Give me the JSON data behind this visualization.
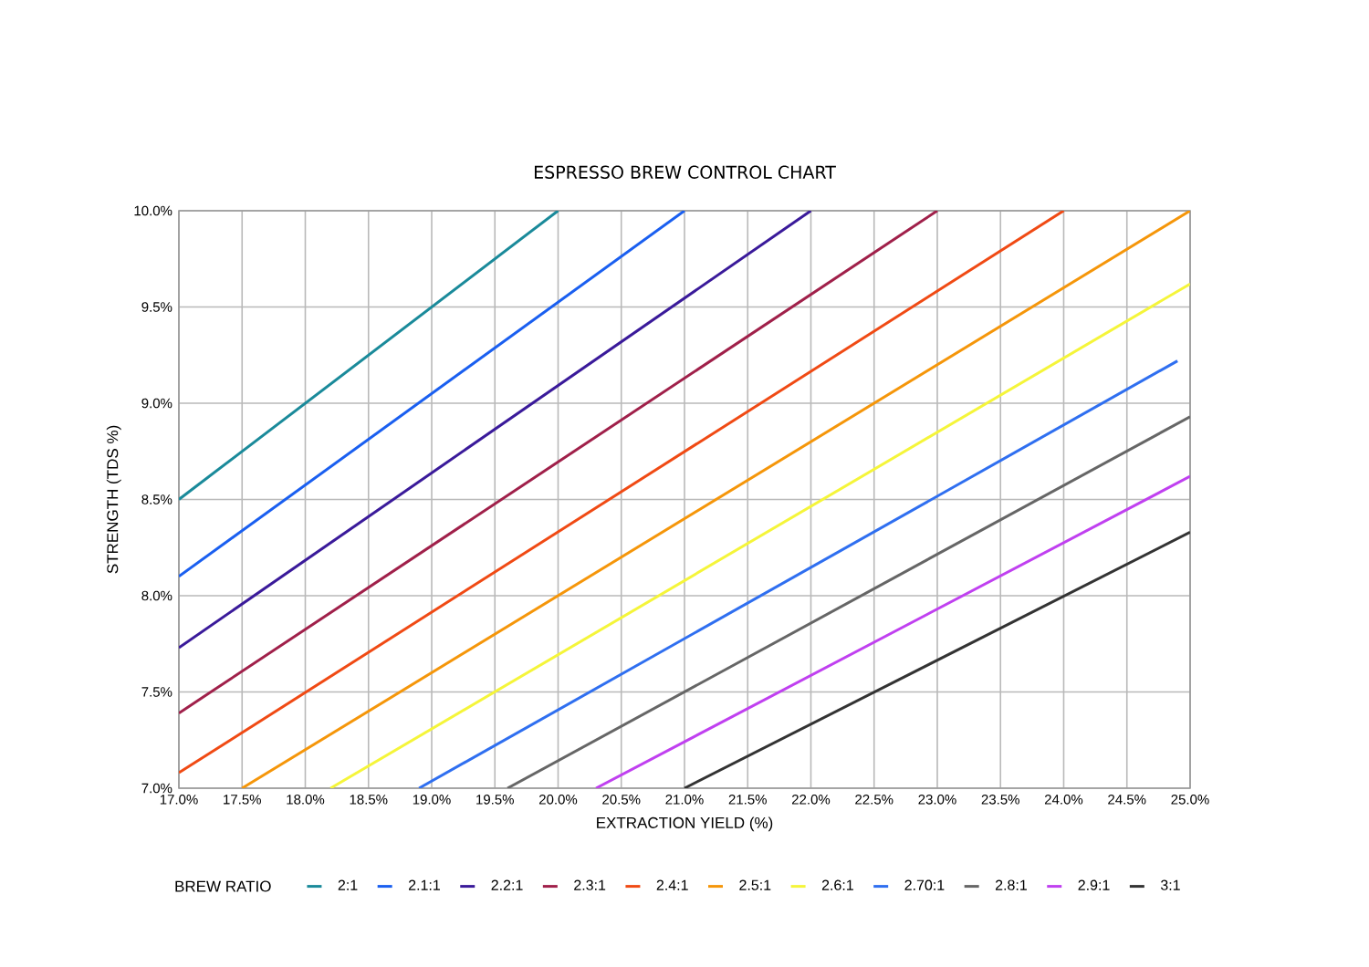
{
  "chart_data": {
    "type": "line",
    "title": "ESPRESSO BREW CONTROL CHART",
    "xlabel": "EXTRACTION YIELD (%)",
    "ylabel": "STRENGTH (TDS %)",
    "legend_title": "BREW RATIO",
    "xlim": [
      17,
      25
    ],
    "ylim": [
      7,
      10
    ],
    "xticks": [
      {
        "value": 17,
        "label": "17.0%"
      },
      {
        "value": 17.5,
        "label": "17.5%"
      },
      {
        "value": 18,
        "label": "18.0%"
      },
      {
        "value": 18.5,
        "label": "18.5%"
      },
      {
        "value": 19,
        "label": "19.0%"
      },
      {
        "value": 19.5,
        "label": "19.5%"
      },
      {
        "value": 20,
        "label": "20.0%"
      },
      {
        "value": 20.5,
        "label": "20.5%"
      },
      {
        "value": 21,
        "label": "21.0%"
      },
      {
        "value": 21.5,
        "label": "21.5%"
      },
      {
        "value": 22,
        "label": "22.0%"
      },
      {
        "value": 22.5,
        "label": "22.5%"
      },
      {
        "value": 23,
        "label": "23.0%"
      },
      {
        "value": 23.5,
        "label": "23.5%"
      },
      {
        "value": 24,
        "label": "24.0%"
      },
      {
        "value": 24.5,
        "label": "24.5%"
      },
      {
        "value": 25,
        "label": "25.0%"
      }
    ],
    "yticks": [
      {
        "value": 7,
        "label": "7.0%"
      },
      {
        "value": 7.5,
        "label": "7.5%"
      },
      {
        "value": 8,
        "label": "8.0%"
      },
      {
        "value": 8.5,
        "label": "8.5%"
      },
      {
        "value": 9,
        "label": "9.0%"
      },
      {
        "value": 9.5,
        "label": "9.5%"
      },
      {
        "value": 10,
        "label": "10.0%"
      }
    ],
    "grid": true,
    "legend": "bottom",
    "series": [
      {
        "name": "2:1",
        "color": "#1a8a9a",
        "x": [
          17,
          20
        ],
        "values": [
          8.5,
          10
        ]
      },
      {
        "name": "2.1:1",
        "color": "#1a5ff0",
        "x": [
          17,
          21
        ],
        "values": [
          8.1,
          10
        ]
      },
      {
        "name": "2.2:1",
        "color": "#3a1a9a",
        "x": [
          17,
          22
        ],
        "values": [
          7.73,
          10
        ]
      },
      {
        "name": "2.3:1",
        "color": "#a0204a",
        "x": [
          17,
          23
        ],
        "values": [
          7.39,
          10
        ]
      },
      {
        "name": "2.4:1",
        "color": "#f04a14",
        "x": [
          17,
          24
        ],
        "values": [
          7.08,
          10
        ]
      },
      {
        "name": "2.5:1",
        "color": "#f5960a",
        "x": [
          17.5,
          25
        ],
        "values": [
          7,
          10
        ]
      },
      {
        "name": "2.6:1",
        "color": "#f5f53a",
        "x": [
          18.2,
          25
        ],
        "values": [
          7,
          9.62
        ]
      },
      {
        "name": "2.70:1",
        "color": "#2f6ff0",
        "x": [
          18.9,
          24.9
        ],
        "values": [
          7,
          9.22
        ]
      },
      {
        "name": "2.8:1",
        "color": "#666666",
        "x": [
          19.6,
          25
        ],
        "values": [
          7,
          8.93
        ]
      },
      {
        "name": "2.9:1",
        "color": "#c040f0",
        "x": [
          20.3,
          25
        ],
        "values": [
          7,
          8.62
        ]
      },
      {
        "name": "3:1",
        "color": "#333333",
        "x": [
          21,
          25
        ],
        "values": [
          7,
          8.33
        ]
      }
    ]
  }
}
